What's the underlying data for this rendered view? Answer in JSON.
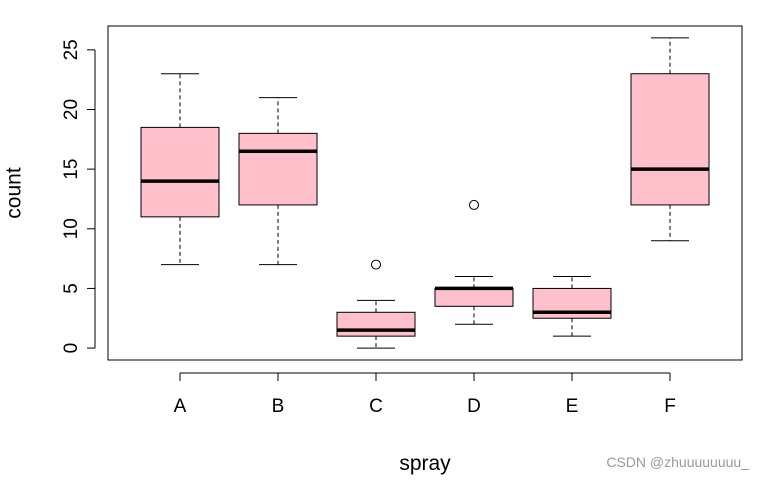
{
  "chart_data": {
    "type": "boxplot",
    "xlabel": "spray",
    "ylabel": "count",
    "categories": [
      "A",
      "B",
      "C",
      "D",
      "E",
      "F"
    ],
    "boxes": [
      {
        "category": "A",
        "whisker_low": 7,
        "q1": 11,
        "median": 14,
        "q3": 18.5,
        "whisker_high": 23,
        "outliers": []
      },
      {
        "category": "B",
        "whisker_low": 7,
        "q1": 12,
        "median": 16.5,
        "q3": 18,
        "whisker_high": 21,
        "outliers": []
      },
      {
        "category": "C",
        "whisker_low": 0,
        "q1": 1,
        "median": 1.5,
        "q3": 3,
        "whisker_high": 4,
        "outliers": [
          7
        ]
      },
      {
        "category": "D",
        "whisker_low": 2,
        "q1": 3.5,
        "median": 5,
        "q3": 5,
        "whisker_high": 6,
        "outliers": [
          12
        ]
      },
      {
        "category": "E",
        "whisker_low": 1,
        "q1": 2.5,
        "median": 3,
        "q3": 5,
        "whisker_high": 6,
        "outliers": []
      },
      {
        "category": "F",
        "whisker_low": 9,
        "q1": 12,
        "median": 15,
        "q3": 23,
        "whisker_high": 26,
        "outliers": []
      }
    ],
    "ylim": [
      -1,
      27
    ],
    "y_ticks": [
      0,
      5,
      10,
      15,
      20,
      25
    ],
    "y_tick_labels": [
      "0",
      "5",
      "10",
      "15",
      "20",
      "25"
    ],
    "box_fill": "#ffc0cb",
    "grid": false
  },
  "watermark": "CSDN @zhuuuuuuuu_"
}
